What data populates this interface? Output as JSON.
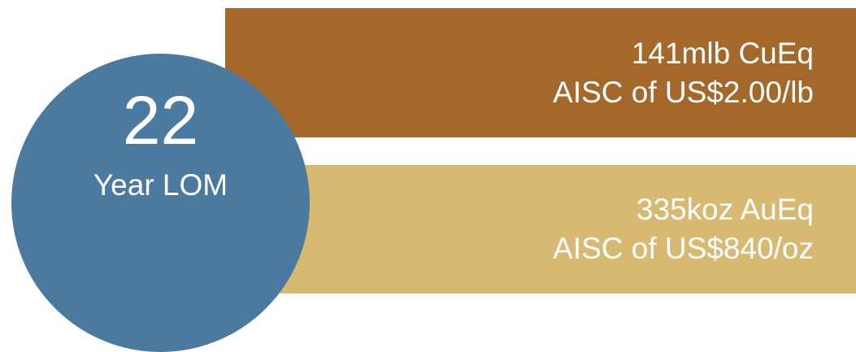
{
  "circle": {
    "number": "22",
    "label": "Year LOM",
    "color": "#4b7aa0"
  },
  "panels": [
    {
      "line1": "141mlb CuEq",
      "line2": "AISC of US$2.00/lb",
      "color": "#a4692a"
    },
    {
      "line1": "335koz AuEq",
      "line2": "AISC of US$840/oz",
      "color": "#d8b972"
    }
  ]
}
